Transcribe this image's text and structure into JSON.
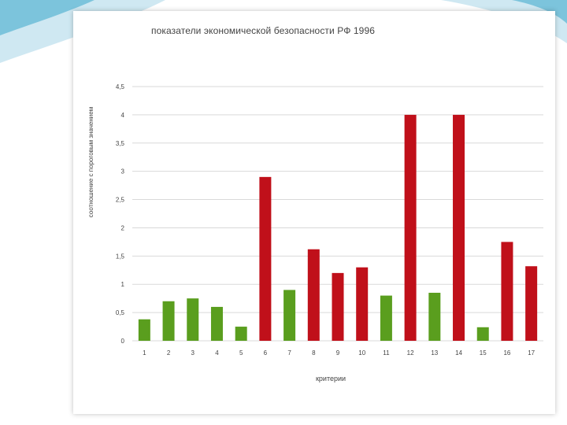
{
  "slide": {
    "title": "показатели экономической безопасности РФ 1996"
  },
  "chart_data": {
    "type": "bar",
    "title": "показатели экономической безопасности РФ 1996",
    "xlabel": "критерии",
    "ylabel": "соотношение с пороговым значением",
    "categories": [
      "1",
      "2",
      "3",
      "4",
      "5",
      "6",
      "7",
      "8",
      "9",
      "10",
      "11",
      "12",
      "13",
      "14",
      "15",
      "16",
      "17"
    ],
    "values": [
      0.38,
      0.7,
      0.75,
      0.6,
      0.25,
      2.9,
      0.9,
      1.62,
      1.2,
      1.3,
      0.8,
      4.0,
      0.85,
      4.0,
      0.24,
      1.75,
      1.32
    ],
    "bar_colors": [
      "#5a9e1e",
      "#5a9e1e",
      "#5a9e1e",
      "#5a9e1e",
      "#5a9e1e",
      "#c0101a",
      "#5a9e1e",
      "#c0101a",
      "#c0101a",
      "#c0101a",
      "#5a9e1e",
      "#c0101a",
      "#5a9e1e",
      "#c0101a",
      "#5a9e1e",
      "#c0101a",
      "#c0101a"
    ],
    "yticks": [
      "0",
      "0,5",
      "1",
      "1,5",
      "2",
      "2,5",
      "3",
      "3,5",
      "4",
      "4,5"
    ],
    "ylim": [
      0,
      4.5
    ],
    "grid": true,
    "legend": "none"
  },
  "colors": {
    "green": "#5a9e1e",
    "red": "#c0101a",
    "grid": "#d9d9d9",
    "accent": "#3aa6c9"
  }
}
